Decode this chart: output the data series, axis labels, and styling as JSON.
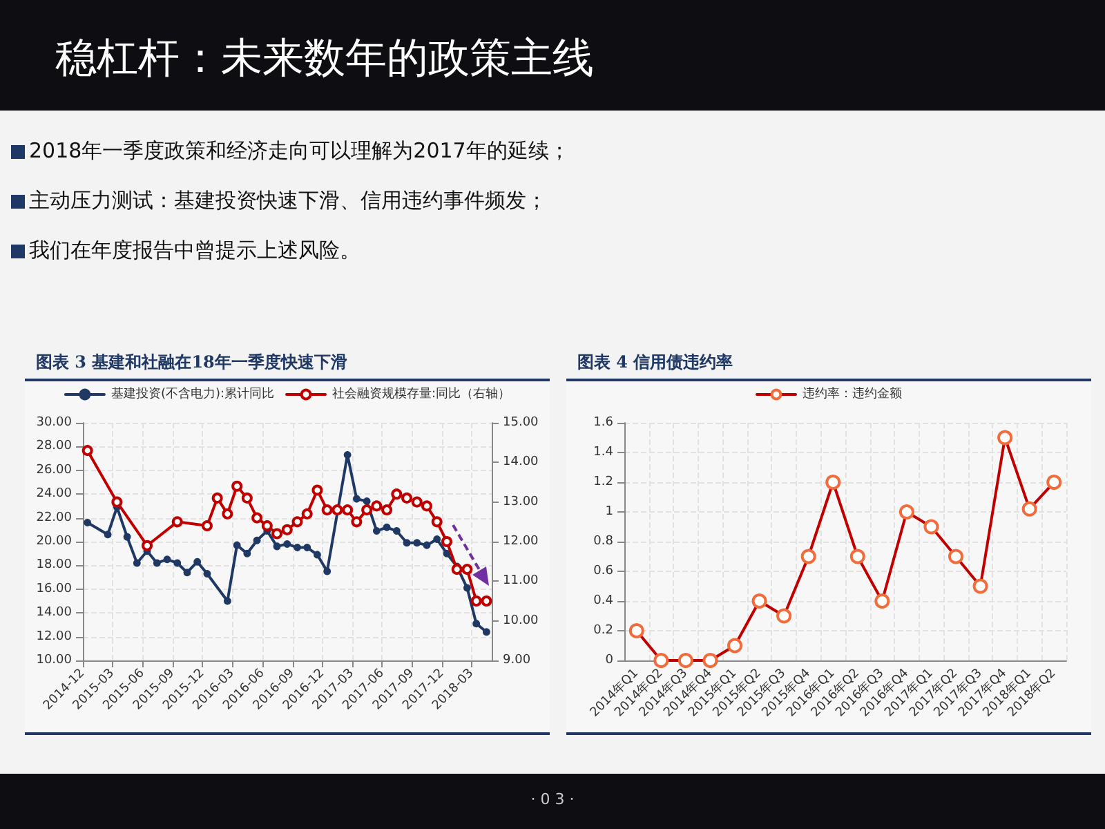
{
  "chart_data": [
    {
      "type": "line",
      "title": "图表 3 基建和社融在18年一季度快速下滑",
      "annotations": [
        "稳杠杆：未来数年的政策主线",
        "2018年一季度政策和经济走向可以理解为2017年的延续；",
        "主动压力测试：基建投资快速下滑、信用违约事件频发；",
        "我们在年度报告中曾提示上述风险。",
        "· 0 3 ·"
      ],
      "series": [
        {
          "name": "基建投资(不含电力):累计同比",
          "color": "#1f3864",
          "x": [
            "2014-12-15",
            "2015-02-15",
            "2015-03-15",
            "2015-04-15",
            "2015-05-15",
            "2015-06-15",
            "2015-07-15",
            "2015-08-15",
            "2015-09-15",
            "2015-10-15",
            "2015-11-15",
            "2015-12-15",
            "2016-02-15",
            "2016-03-15",
            "2016-04-15",
            "2016-05-15",
            "2016-06-15",
            "2016-07-15",
            "2016-08-15",
            "2016-09-15",
            "2016-10-15",
            "2016-11-15",
            "2016-12-15",
            "2017-02-15",
            "2017-03-15",
            "2017-04-15",
            "2017-05-15",
            "2017-06-15",
            "2017-07-15",
            "2017-08-15",
            "2017-09-15",
            "2017-10-15",
            "2017-11-15",
            "2017-12-15",
            "2018-01-15",
            "2018-02-15",
            "2018-03-15",
            "2018-04-15"
          ],
          "values": [
            21.6,
            20.6,
            22.9,
            20.4,
            18.2,
            19.2,
            18.2,
            18.5,
            18.2,
            17.4,
            18.3,
            17.3,
            15.0,
            19.7,
            19.0,
            20.1,
            20.9,
            19.6,
            19.8,
            19.5,
            19.5,
            18.9,
            17.5,
            27.3,
            23.6,
            23.4,
            20.9,
            21.2,
            20.9,
            19.9,
            19.9,
            19.7,
            20.2,
            19.0,
            17.9,
            16.1,
            13.1,
            12.4
          ]
        },
        {
          "name": "社会融资规模存量:同比（右轴）",
          "color": "#c00000",
          "axis": "y2",
          "x": [
            "2014-12-15",
            "2015-03-15",
            "2015-06-15",
            "2015-09-15",
            "2015-12-15",
            "2016-01-15",
            "2016-02-15",
            "2016-03-15",
            "2016-04-15",
            "2016-05-15",
            "2016-06-15",
            "2016-07-15",
            "2016-08-15",
            "2016-09-15",
            "2016-10-15",
            "2016-11-15",
            "2016-12-15",
            "2017-01-15",
            "2017-02-15",
            "2017-03-15",
            "2017-04-15",
            "2017-05-15",
            "2017-06-15",
            "2017-07-15",
            "2017-08-15",
            "2017-09-15",
            "2017-10-15",
            "2017-11-15",
            "2017-12-15",
            "2018-01-15",
            "2018-02-15",
            "2018-03-15",
            "2018-04-15"
          ],
          "values": [
            14.3,
            13.0,
            11.9,
            12.5,
            12.4,
            13.1,
            12.7,
            13.4,
            13.1,
            12.6,
            12.4,
            12.2,
            12.3,
            12.5,
            12.7,
            13.3,
            12.8,
            12.8,
            12.8,
            12.5,
            12.8,
            12.9,
            12.8,
            13.2,
            13.1,
            13.0,
            12.9,
            12.5,
            12.0,
            11.3,
            11.3,
            10.5,
            10.5
          ]
        }
      ],
      "xlim": [
        "2014-12",
        "2018-05"
      ],
      "xticks": [
        {
          "value": "2014-12",
          "label": "2014-12"
        },
        {
          "value": "2015-03",
          "label": "2015-03"
        },
        {
          "value": "2015-06",
          "label": "2015-06"
        },
        {
          "value": "2015-09",
          "label": "2015-09"
        },
        {
          "value": "2015-12",
          "label": "2015-12"
        },
        {
          "value": "2016-03",
          "label": "2016-03"
        },
        {
          "value": "2016-06",
          "label": "2016-06"
        },
        {
          "value": "2016-09",
          "label": "2016-09"
        },
        {
          "value": "2016-12",
          "label": "2016-12"
        },
        {
          "value": "2017-03",
          "label": "2017-03"
        },
        {
          "value": "2017-06",
          "label": "2017-06"
        },
        {
          "value": "2017-09",
          "label": "2017-09"
        },
        {
          "value": "2017-12",
          "label": "2017-12"
        },
        {
          "value": "2018-03",
          "label": "2018-03"
        }
      ],
      "ylim": [
        10,
        30
      ],
      "yticks": [
        {
          "value": 10,
          "label": "10.00"
        },
        {
          "value": 12,
          "label": "12.00"
        },
        {
          "value": 14,
          "label": "14.00"
        },
        {
          "value": 16,
          "label": "16.00"
        },
        {
          "value": 18,
          "label": "18.00"
        },
        {
          "value": 20,
          "label": "20.00"
        },
        {
          "value": 22,
          "label": "22.00"
        },
        {
          "value": 24,
          "label": "24.00"
        },
        {
          "value": 26,
          "label": "26.00"
        },
        {
          "value": 28,
          "label": "28.00"
        },
        {
          "value": 30,
          "label": "30.00"
        }
      ],
      "y2lim": [
        9,
        15
      ],
      "y2ticks": [
        {
          "value": 9,
          "label": "9.00"
        },
        {
          "value": 10,
          "label": "10.00"
        },
        {
          "value": 11,
          "label": "11.00"
        },
        {
          "value": 12,
          "label": "12.00"
        },
        {
          "value": 13,
          "label": "13.00"
        },
        {
          "value": 14,
          "label": "14.00"
        },
        {
          "value": 15,
          "label": "15.00"
        }
      ],
      "grid": true,
      "legend": "top",
      "marker": "circle",
      "line_style": "solid"
    },
    {
      "type": "line",
      "title": "图表 4 信用债违约率",
      "categories": [
        "2014年Q1",
        "2014年Q2",
        "2014年Q3",
        "2014年Q4",
        "2015年Q1",
        "2015年Q2",
        "2015年Q3",
        "2015年Q4",
        "2016年Q1",
        "2016年Q2",
        "2016年Q3",
        "2016年Q4",
        "2017年Q1",
        "2017年Q2",
        "2017年Q3",
        "2017年Q4",
        "2018年Q1",
        "2018年Q2"
      ],
      "series": [
        {
          "name": "违约率：违约金额",
          "color": "#c00000",
          "values": [
            0.2,
            0,
            0,
            0,
            0.1,
            0.4,
            0.3,
            0.7,
            1.2,
            0.7,
            0.4,
            1.0,
            0.9,
            0.7,
            0.5,
            1.5,
            1.02,
            1.2
          ]
        }
      ],
      "ylim": [
        0,
        1.6
      ],
      "yticks": [
        0,
        0.2,
        0.4,
        0.6,
        0.8,
        1,
        1.2,
        1.4,
        1.6
      ],
      "grid": true,
      "legend": "top",
      "marker": "circle",
      "line_style": "solid"
    }
  ]
}
